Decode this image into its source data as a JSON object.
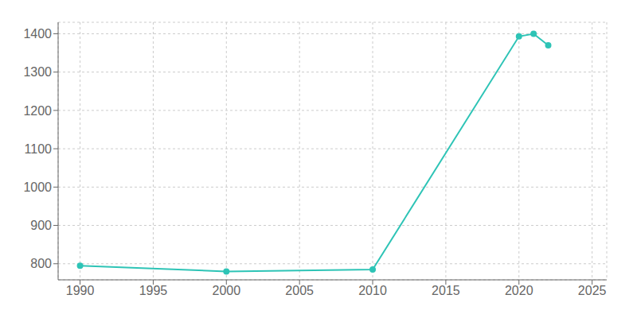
{
  "chart_data": {
    "type": "line",
    "x": [
      1990,
      2000,
      2010,
      2020,
      2021,
      2022
    ],
    "values": [
      795,
      780,
      785,
      1393,
      1400,
      1370
    ],
    "color": "#2ec4b6",
    "xlim": [
      1988.5,
      2026
    ],
    "ylim": [
      758,
      1430
    ],
    "xticks": [
      1990,
      1995,
      2000,
      2005,
      2010,
      2015,
      2020,
      2025
    ],
    "yticks": [
      800,
      900,
      1000,
      1100,
      1200,
      1300,
      1400
    ],
    "grid": true,
    "marker": "circle"
  }
}
